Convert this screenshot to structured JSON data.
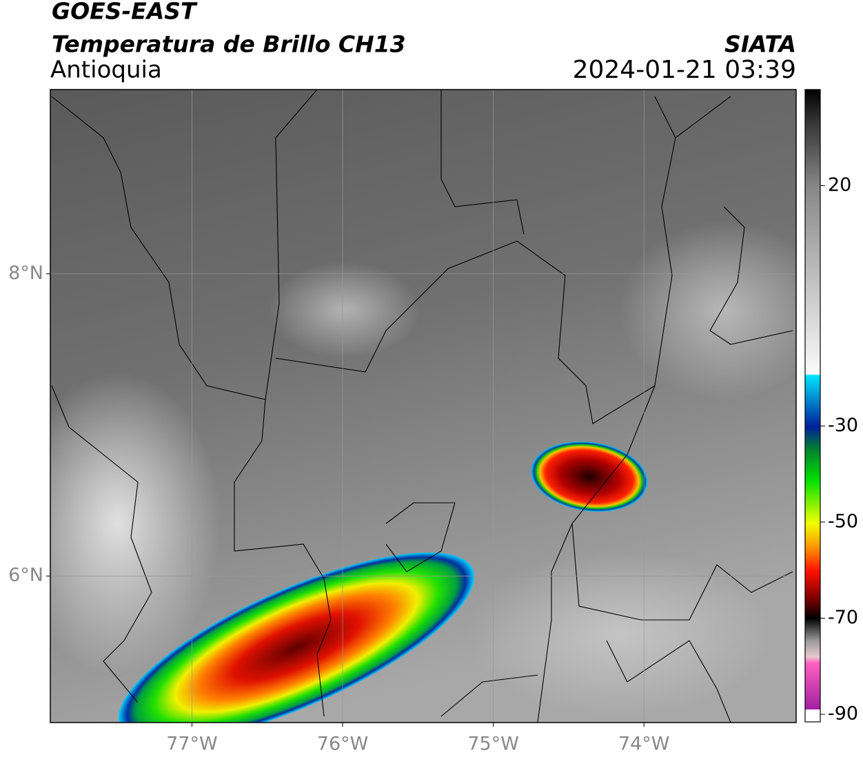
{
  "header": {
    "title": "GOES-EAST",
    "subtitle": "Temperatura de Brillo CH13",
    "region": "Antioquia",
    "source": "SIATA",
    "datetime": "2024-01-21 03:39"
  },
  "map": {
    "xlim": [
      -77.94,
      -72.99
    ],
    "ylim": [
      5.03,
      9.22
    ],
    "xticks": [
      {
        "value": -77,
        "label": "77°W"
      },
      {
        "value": -76,
        "label": "76°W"
      },
      {
        "value": -75,
        "label": "75°W"
      },
      {
        "value": -74,
        "label": "74°W"
      }
    ],
    "yticks": [
      {
        "value": 8,
        "label": "8°N"
      },
      {
        "value": 6,
        "label": "6°N"
      }
    ],
    "grid": true
  },
  "colorbar": {
    "clim": [
      -90,
      40
    ],
    "ticks": [
      20,
      -30,
      -50,
      -70,
      -90
    ]
  }
}
